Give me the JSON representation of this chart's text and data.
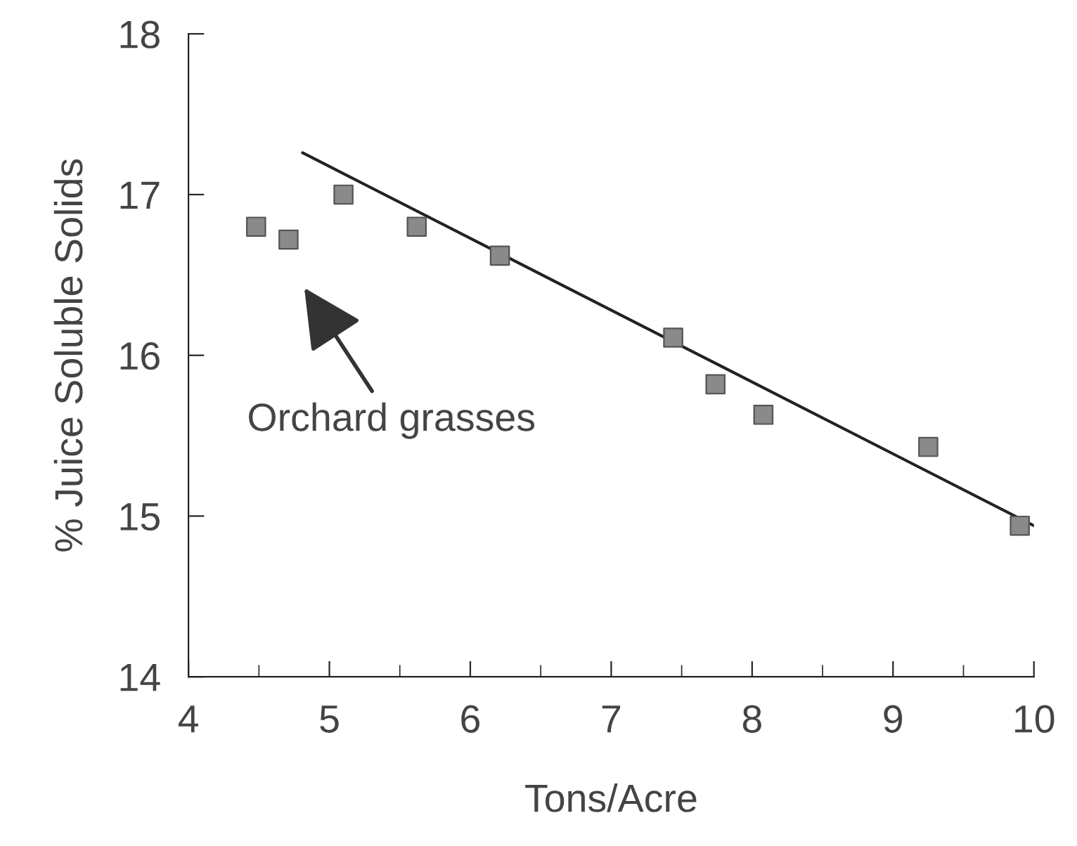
{
  "chart_data": {
    "type": "scatter",
    "xlabel": "Tons/Acre",
    "ylabel": "% Juice Soluble Solids",
    "series": [
      {
        "color": "#8a8a8a",
        "marker": "square",
        "x": [
          4.48,
          4.71,
          5.1,
          5.62,
          6.21,
          7.44,
          7.74,
          8.08,
          9.25,
          9.9
        ],
        "values": [
          16.8,
          16.72,
          17.0,
          16.8,
          16.62,
          16.11,
          15.82,
          15.63,
          15.43,
          14.94
        ]
      },
      {
        "type": "line",
        "color": "#222222",
        "marker": "none",
        "line_style": "solid",
        "x": [
          4.81,
          10.0
        ],
        "values": [
          17.26,
          14.94
        ]
      }
    ],
    "xlim": [
      4,
      10
    ],
    "xticks": [
      4,
      5,
      6,
      7,
      8,
      9,
      10
    ],
    "ylim": [
      14,
      18
    ],
    "yticks": [
      14,
      15,
      16,
      17,
      18
    ],
    "grid": false,
    "legend": false,
    "annotations": [
      "Orchard grasses"
    ]
  }
}
